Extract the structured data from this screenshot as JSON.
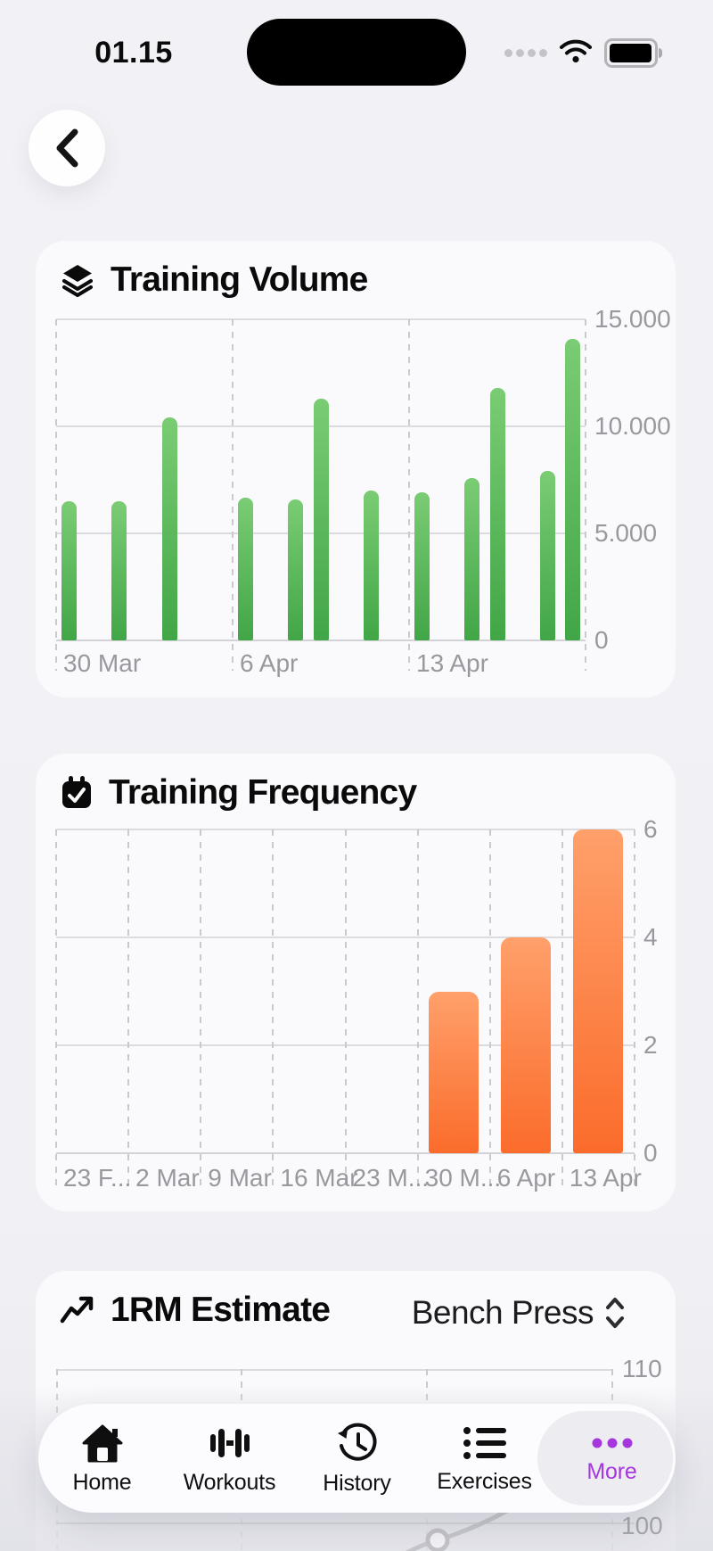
{
  "status_bar": {
    "time": "01.15"
  },
  "back_button": {
    "icon": "chevron-left"
  },
  "one_rm": {
    "selector_label": "Bench Press"
  },
  "tab_bar": {
    "active_color": "#a637dd",
    "items": [
      {
        "label": "Home",
        "icon": "home-icon",
        "active": false
      },
      {
        "label": "Workouts",
        "icon": "dumbbell-icon",
        "active": false
      },
      {
        "label": "History",
        "icon": "history-icon",
        "active": false
      },
      {
        "label": "Exercises",
        "icon": "list-icon",
        "active": false
      },
      {
        "label": "More",
        "icon": "ellipsis-icon",
        "active": true
      }
    ]
  },
  "chart_data": [
    {
      "id": "training-volume",
      "type": "bar",
      "title": "Training Volume",
      "title_icon": "layers-icon",
      "bar_color_top": "#7bcc74",
      "bar_color_bottom": "#41a647",
      "ylim": [
        0,
        15000
      ],
      "y_ticks": [
        {
          "label": "15.000",
          "value": 15000
        },
        {
          "label": "10.000",
          "value": 10000
        },
        {
          "label": "5.000",
          "value": 5000
        },
        {
          "label": "0",
          "value": 0
        }
      ],
      "total_days": 21,
      "x_week_labels": [
        {
          "label": "30 Mar",
          "start_day": 0
        },
        {
          "label": "6 Apr",
          "start_day": 7
        },
        {
          "label": "13 Apr",
          "start_day": 14
        }
      ],
      "points": [
        {
          "day": 0,
          "value": 6500
        },
        {
          "day": 2,
          "value": 6500
        },
        {
          "day": 4,
          "value": 10400
        },
        {
          "day": 7,
          "value": 6650
        },
        {
          "day": 9,
          "value": 6600
        },
        {
          "day": 10,
          "value": 11300
        },
        {
          "day": 12,
          "value": 7000
        },
        {
          "day": 14,
          "value": 6900
        },
        {
          "day": 16,
          "value": 7600
        },
        {
          "day": 17,
          "value": 11800
        },
        {
          "day": 19,
          "value": 7900
        },
        {
          "day": 20,
          "value": 14100
        }
      ]
    },
    {
      "id": "training-frequency",
      "type": "bar",
      "title": "Training Frequency",
      "title_icon": "calendar-check-icon",
      "bar_color_top": "#ffa06b",
      "bar_color_bottom": "#fb6c2b",
      "ylim": [
        0,
        6
      ],
      "y_ticks": [
        {
          "label": "6",
          "value": 6
        },
        {
          "label": "4",
          "value": 4
        },
        {
          "label": "2",
          "value": 2
        },
        {
          "label": "0",
          "value": 0
        }
      ],
      "categories": [
        "23 F...",
        "2 Mar",
        "9 Mar",
        "16 Mar",
        "23 M...",
        "30 M...",
        "6 Apr",
        "13 Apr"
      ],
      "values": [
        0,
        0,
        0,
        0,
        0,
        3,
        4,
        6
      ]
    },
    {
      "id": "one-rm-estimate",
      "type": "line",
      "title": "1RM Estimate",
      "title_icon": "trending-up-icon",
      "exercise_selector": "Bench Press",
      "y_ticks": [
        {
          "label": "110"
        },
        {
          "label": "100"
        }
      ],
      "x_gridline_count": 4,
      "visible": "partial"
    }
  ]
}
